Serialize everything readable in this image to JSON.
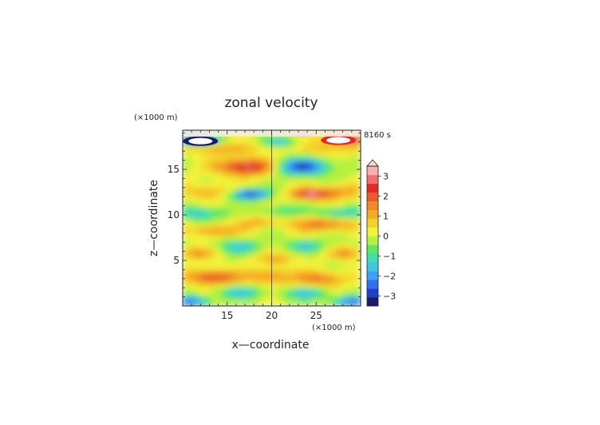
{
  "chart_data": {
    "type": "heatmap",
    "title": "zonal velocity",
    "xlabel": "x—coordinate",
    "ylabel": "z—coordinate",
    "x_unit": "(×1000 m)",
    "y_unit": "(×1000 m)",
    "time_label": "8160 s",
    "xlim": [
      10,
      30
    ],
    "ylim": [
      0,
      19.3
    ],
    "x_ticks": [
      15,
      20,
      25
    ],
    "y_ticks": [
      5,
      10,
      15
    ],
    "x_tick_labels": [
      "15",
      "20",
      "25"
    ],
    "y_tick_labels": [
      "5",
      "10",
      "15"
    ],
    "colorbar": {
      "range": [
        -3.5,
        3.5
      ],
      "ticks": [
        3,
        2,
        1,
        0,
        -1,
        -2,
        -3
      ],
      "tick_labels": [
        "3",
        "2",
        "1",
        "0",
        "−1",
        "−2",
        "−3"
      ],
      "colors": [
        "#1a1a70",
        "#1f3fd0",
        "#2f6ff0",
        "#3ea0f5",
        "#3ec8e0",
        "#3edfa8",
        "#60e860",
        "#b8f040",
        "#f2f23a",
        "#f5d22a",
        "#f5aa25",
        "#f08a28",
        "#eb5a28",
        "#e02a28",
        "#f07070",
        "#f5b0b0"
      ]
    }
  }
}
